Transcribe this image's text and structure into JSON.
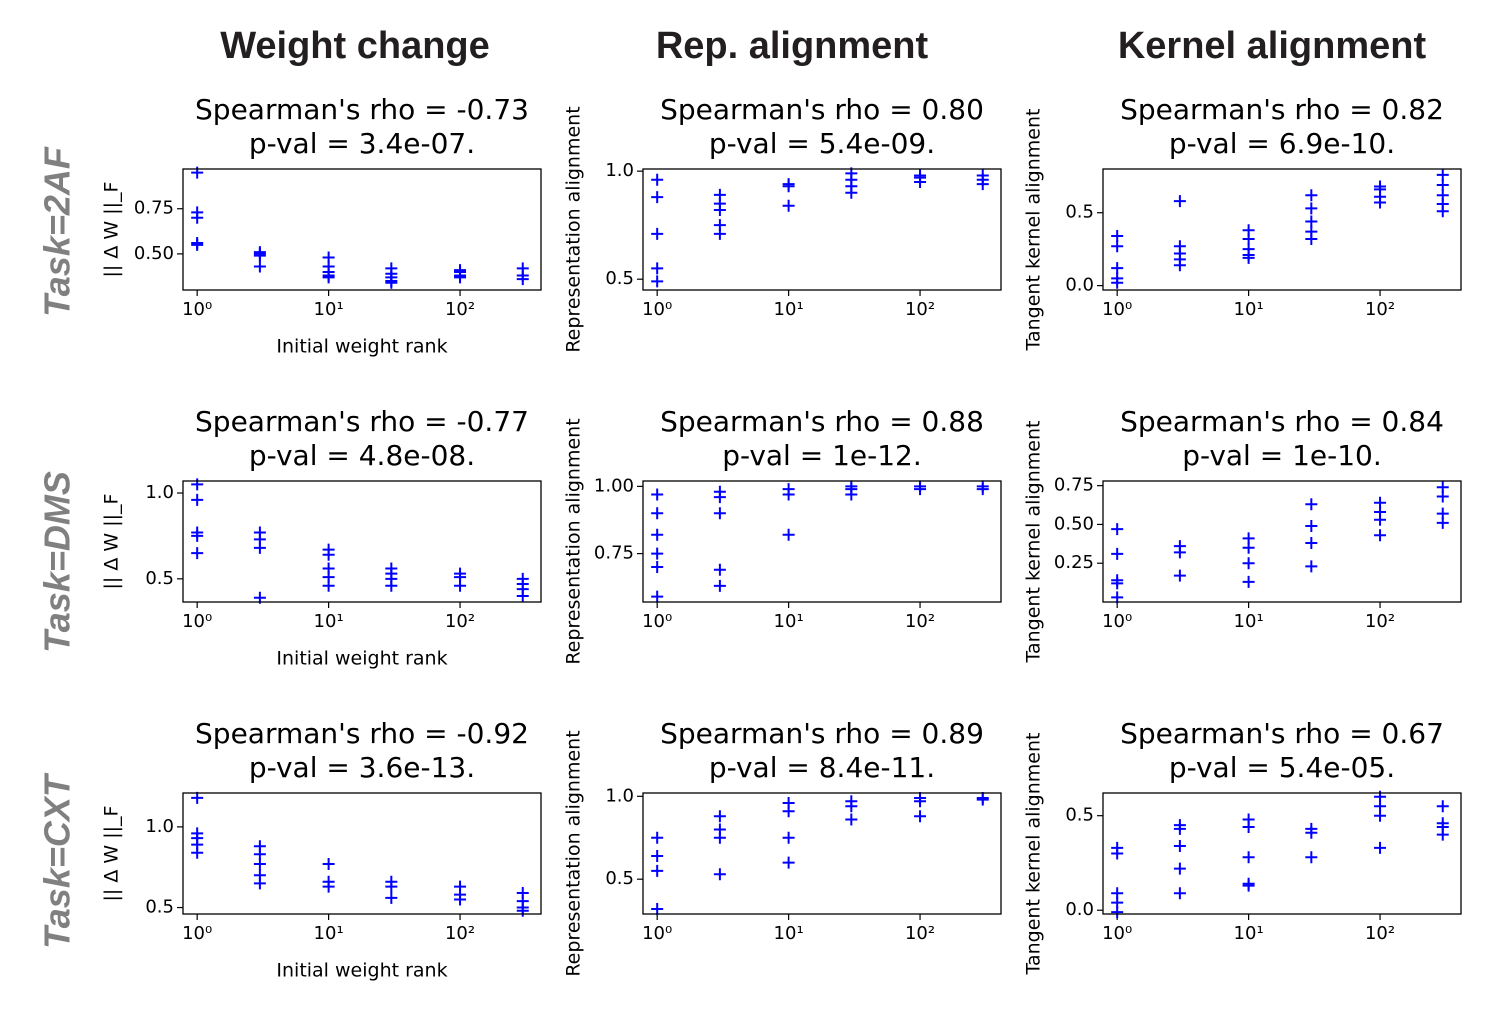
{
  "column_titles": [
    "Weight change",
    "Rep. alignment",
    "Kernel alignment"
  ],
  "row_labels": [
    "Task=2AF",
    "Task=DMS",
    "Task=CXT"
  ],
  "chart_data": [
    {
      "type": "scatter",
      "title": "Spearman's rho = -0.73",
      "subtitle": "p-val = 3.4e-07.",
      "xlabel": "Initial weight rank",
      "ylabel": "|| Δ W ||_F",
      "color": "#0000ff",
      "log_x": true,
      "xlim": [
        0.78,
        413
      ],
      "xticks": [
        {
          "value": 1,
          "label": "10⁰"
        },
        {
          "value": 10,
          "label": "10¹"
        },
        {
          "value": 100,
          "label": "10²"
        }
      ],
      "ylim": [
        0.3,
        0.97
      ],
      "yticks": [
        {
          "value": 0.5,
          "label": "0.50"
        },
        0.75
      ],
      "x": [
        1,
        1,
        1,
        1,
        1,
        3,
        3,
        3,
        3,
        10,
        10,
        10,
        10,
        10,
        30,
        30,
        30,
        30,
        30,
        100,
        100,
        100,
        100,
        300,
        300,
        300
      ],
      "values": [
        0.95,
        0.73,
        0.7,
        0.56,
        0.55,
        0.51,
        0.5,
        0.49,
        0.43,
        0.48,
        0.43,
        0.4,
        0.38,
        0.37,
        0.42,
        0.39,
        0.37,
        0.35,
        0.34,
        0.41,
        0.4,
        0.38,
        0.37,
        0.42,
        0.38,
        0.36
      ]
    },
    {
      "type": "scatter",
      "title": "Spearman's rho = 0.80",
      "subtitle": "p-val = 5.4e-09.",
      "ylabel": "Representation alignment",
      "color": "#0000ff",
      "log_x": true,
      "xlim": [
        0.78,
        413
      ],
      "xticks": [
        {
          "value": 1,
          "label": "10⁰"
        },
        {
          "value": 10,
          "label": "10¹"
        },
        {
          "value": 100,
          "label": "10²"
        }
      ],
      "ylim": [
        0.45,
        1.01
      ],
      "yticks": [
        0.5,
        {
          "value": 1,
          "label": "1.0"
        }
      ],
      "x": [
        1,
        1,
        1,
        1,
        1,
        3,
        3,
        3,
        3,
        3,
        10,
        10,
        10,
        30,
        30,
        30,
        30,
        100,
        100,
        100,
        300,
        300,
        300
      ],
      "values": [
        0.96,
        0.88,
        0.71,
        0.55,
        0.49,
        0.89,
        0.85,
        0.82,
        0.75,
        0.71,
        0.94,
        0.93,
        0.84,
        0.99,
        0.96,
        0.93,
        0.9,
        0.98,
        0.97,
        0.95,
        0.98,
        0.96,
        0.94
      ]
    },
    {
      "type": "scatter",
      "title": "Spearman's rho = 0.82",
      "subtitle": "p-val = 6.9e-10.",
      "ylabel": "Tangent kernel alignment",
      "color": "#0000ff",
      "log_x": true,
      "xlim": [
        0.78,
        413
      ],
      "xticks": [
        {
          "value": 1,
          "label": "10⁰"
        },
        {
          "value": 10,
          "label": "10¹"
        },
        {
          "value": 100,
          "label": "10²"
        }
      ],
      "ylim": [
        -0.03,
        0.8
      ],
      "yticks": [
        {
          "value": 0,
          "label": "0.0"
        },
        0.5
      ],
      "x": [
        1,
        1,
        1,
        1,
        1,
        3,
        3,
        3,
        3,
        3,
        10,
        10,
        10,
        10,
        10,
        30,
        30,
        30,
        30,
        30,
        100,
        100,
        100,
        100,
        300,
        300,
        300,
        300,
        300
      ],
      "values": [
        0.34,
        0.27,
        0.12,
        0.05,
        0.02,
        0.58,
        0.27,
        0.22,
        0.18,
        0.14,
        0.38,
        0.32,
        0.25,
        0.21,
        0.19,
        0.62,
        0.53,
        0.44,
        0.37,
        0.32,
        0.68,
        0.66,
        0.61,
        0.57,
        0.76,
        0.69,
        0.62,
        0.56,
        0.51
      ]
    },
    {
      "type": "scatter",
      "title": "Spearman's rho = -0.77",
      "subtitle": "p-val = 4.8e-08.",
      "xlabel": "Initial weight rank",
      "ylabel": "|| Δ W ||_F",
      "color": "#0000ff",
      "log_x": true,
      "xlim": [
        0.78,
        413
      ],
      "xticks": [
        {
          "value": 1,
          "label": "10⁰"
        },
        {
          "value": 10,
          "label": "10¹"
        },
        {
          "value": 100,
          "label": "10²"
        }
      ],
      "ylim": [
        0.365,
        1.07
      ],
      "yticks": [
        0.5,
        {
          "value": 1,
          "label": "1.0"
        }
      ],
      "x": [
        1,
        1,
        1,
        1,
        1,
        3,
        3,
        3,
        3,
        10,
        10,
        10,
        10,
        10,
        30,
        30,
        30,
        30,
        100,
        100,
        100,
        300,
        300,
        300,
        300
      ],
      "values": [
        1.05,
        0.96,
        0.77,
        0.75,
        0.65,
        0.77,
        0.73,
        0.68,
        0.39,
        0.67,
        0.64,
        0.56,
        0.51,
        0.46,
        0.56,
        0.53,
        0.5,
        0.46,
        0.53,
        0.51,
        0.46,
        0.5,
        0.47,
        0.44,
        0.4
      ]
    },
    {
      "type": "scatter",
      "title": "Spearman's rho = 0.88",
      "subtitle": "p-val = 1e-12.",
      "ylabel": "Representation alignment",
      "color": "#0000ff",
      "log_x": true,
      "xlim": [
        0.78,
        413
      ],
      "xticks": [
        {
          "value": 1,
          "label": "10⁰"
        },
        {
          "value": 10,
          "label": "10¹"
        },
        {
          "value": 100,
          "label": "10²"
        }
      ],
      "ylim": [
        0.57,
        1.02
      ],
      "yticks": [
        0.75,
        {
          "value": 1,
          "label": "1.00"
        }
      ],
      "x": [
        1,
        1,
        1,
        1,
        1,
        1,
        3,
        3,
        3,
        3,
        3,
        10,
        10,
        10,
        30,
        30,
        30,
        100,
        100,
        300,
        300
      ],
      "values": [
        0.97,
        0.9,
        0.82,
        0.75,
        0.7,
        0.59,
        0.98,
        0.96,
        0.9,
        0.69,
        0.63,
        0.99,
        0.97,
        0.82,
        1.0,
        0.99,
        0.97,
        1.0,
        0.99,
        1.0,
        0.99
      ]
    },
    {
      "type": "scatter",
      "title": "Spearman's rho = 0.84",
      "subtitle": "p-val = 1e-10.",
      "ylabel": "Tangent kernel alignment",
      "color": "#0000ff",
      "log_x": true,
      "xlim": [
        0.78,
        413
      ],
      "xticks": [
        {
          "value": 1,
          "label": "10⁰"
        },
        {
          "value": 10,
          "label": "10¹"
        },
        {
          "value": 100,
          "label": "10²"
        }
      ],
      "ylim": [
        0.0,
        0.78
      ],
      "yticks": [
        0.25,
        {
          "value": 0.5,
          "label": "0.50"
        },
        0.75
      ],
      "x": [
        1,
        1,
        1,
        1,
        1,
        3,
        3,
        3,
        10,
        10,
        10,
        10,
        30,
        30,
        30,
        30,
        100,
        100,
        100,
        100,
        300,
        300,
        300,
        300
      ],
      "values": [
        0.47,
        0.31,
        0.14,
        0.12,
        0.03,
        0.36,
        0.32,
        0.17,
        0.41,
        0.35,
        0.25,
        0.13,
        0.63,
        0.49,
        0.38,
        0.23,
        0.64,
        0.58,
        0.53,
        0.43,
        0.74,
        0.68,
        0.57,
        0.51
      ]
    },
    {
      "type": "scatter",
      "title": "Spearman's rho = -0.92",
      "subtitle": "p-val = 3.6e-13.",
      "xlabel": "Initial weight rank",
      "ylabel": "|| Δ W ||_F",
      "color": "#0000ff",
      "log_x": true,
      "xlim": [
        0.78,
        413
      ],
      "xticks": [
        {
          "value": 1,
          "label": "10⁰"
        },
        {
          "value": 10,
          "label": "10¹"
        },
        {
          "value": 100,
          "label": "10²"
        }
      ],
      "ylim": [
        0.46,
        1.21
      ],
      "yticks": [
        0.5,
        {
          "value": 1,
          "label": "1.0"
        }
      ],
      "x": [
        1,
        1,
        1,
        1,
        1,
        3,
        3,
        3,
        3,
        3,
        10,
        10,
        10,
        30,
        30,
        30,
        100,
        100,
        100,
        300,
        300,
        300,
        300
      ],
      "values": [
        1.18,
        0.96,
        0.93,
        0.89,
        0.84,
        0.88,
        0.83,
        0.77,
        0.7,
        0.65,
        0.77,
        0.66,
        0.63,
        0.66,
        0.63,
        0.56,
        0.63,
        0.58,
        0.55,
        0.59,
        0.54,
        0.5,
        0.48
      ]
    },
    {
      "type": "scatter",
      "title": "Spearman's rho = 0.89",
      "subtitle": "p-val = 8.4e-11.",
      "ylabel": "Representation alignment",
      "color": "#0000ff",
      "log_x": true,
      "xlim": [
        0.78,
        413
      ],
      "xticks": [
        {
          "value": 1,
          "label": "10⁰"
        },
        {
          "value": 10,
          "label": "10¹"
        },
        {
          "value": 100,
          "label": "10²"
        }
      ],
      "ylim": [
        0.29,
        1.02
      ],
      "yticks": [
        0.5,
        {
          "value": 1,
          "label": "1.0"
        }
      ],
      "x": [
        1,
        1,
        1,
        1,
        3,
        3,
        3,
        3,
        10,
        10,
        10,
        10,
        30,
        30,
        30,
        100,
        100,
        100,
        300,
        300
      ],
      "values": [
        0.75,
        0.64,
        0.55,
        0.32,
        0.88,
        0.8,
        0.75,
        0.53,
        0.96,
        0.91,
        0.75,
        0.6,
        0.97,
        0.94,
        0.86,
        0.99,
        0.97,
        0.88,
        0.99,
        0.98
      ]
    },
    {
      "type": "scatter",
      "title": "Spearman's rho = 0.67",
      "subtitle": "p-val = 5.4e-05.",
      "ylabel": "Tangent kernel alignment",
      "color": "#0000ff",
      "log_x": true,
      "xlim": [
        0.78,
        413
      ],
      "xticks": [
        {
          "value": 1,
          "label": "10⁰"
        },
        {
          "value": 10,
          "label": "10¹"
        },
        {
          "value": 100,
          "label": "10²"
        }
      ],
      "ylim": [
        -0.02,
        0.62
      ],
      "yticks": [
        {
          "value": 0,
          "label": "0.0"
        },
        0.5
      ],
      "x": [
        1,
        1,
        1,
        1,
        1,
        3,
        3,
        3,
        3,
        3,
        10,
        10,
        10,
        10,
        10,
        30,
        30,
        30,
        100,
        100,
        100,
        100,
        300,
        300,
        300,
        300
      ],
      "values": [
        0.33,
        0.3,
        0.09,
        0.04,
        -0.01,
        0.45,
        0.43,
        0.34,
        0.22,
        0.09,
        0.48,
        0.44,
        0.28,
        0.14,
        0.13,
        0.43,
        0.41,
        0.28,
        0.6,
        0.55,
        0.5,
        0.33,
        0.55,
        0.46,
        0.44,
        0.4
      ]
    }
  ]
}
